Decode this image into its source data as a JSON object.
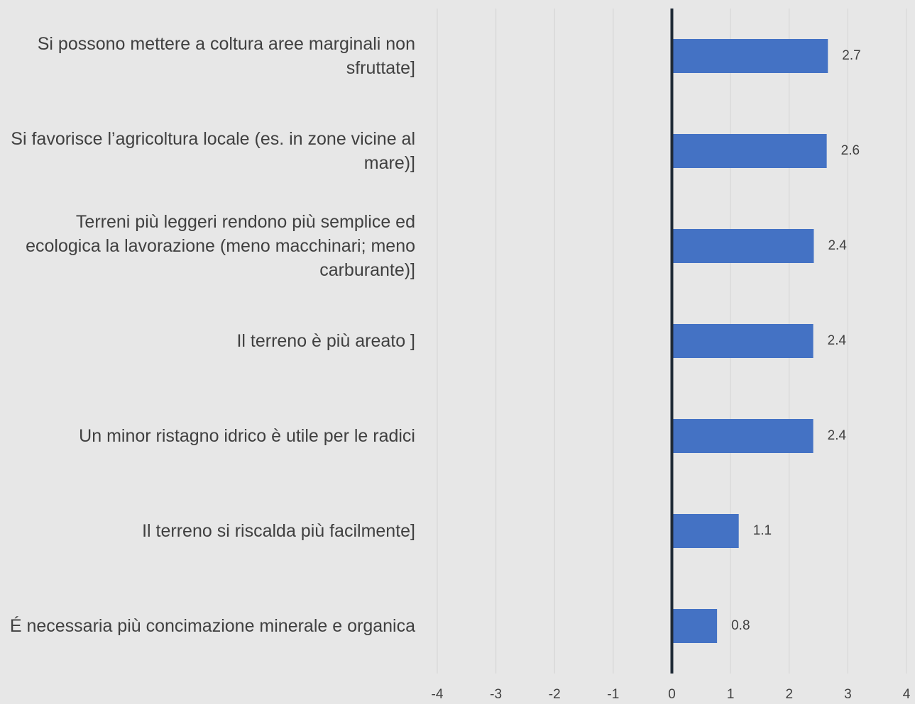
{
  "chart_data": {
    "type": "bar",
    "orientation": "horizontal",
    "categories": [
      "Si possono mettere a coltura aree marginali non sfruttate]",
      "Si favorisce l’agricoltura locale (es. in zone vicine al mare)]",
      "Terreni più leggeri rendono più semplice ed ecologica la lavorazione (meno macchinari; meno carburante)]",
      "Il terreno è più areato ]",
      "Un minor ristagno idrico è utile per le radici",
      "Il terreno si riscalda più facilmente]",
      "É necessaria più concimazione minerale e organica"
    ],
    "values": [
      2.66,
      2.64,
      2.42,
      2.41,
      2.41,
      1.14,
      0.77
    ],
    "value_labels": [
      "2.7",
      "2.6",
      "2.4",
      "2.4",
      "2.4",
      "1.1",
      "0.8"
    ],
    "color": "#4472c4",
    "xlim": [
      -4,
      4
    ],
    "xticks": [
      -4,
      -3,
      -2,
      -1,
      0,
      1,
      2,
      3,
      4
    ],
    "grid": true
  }
}
